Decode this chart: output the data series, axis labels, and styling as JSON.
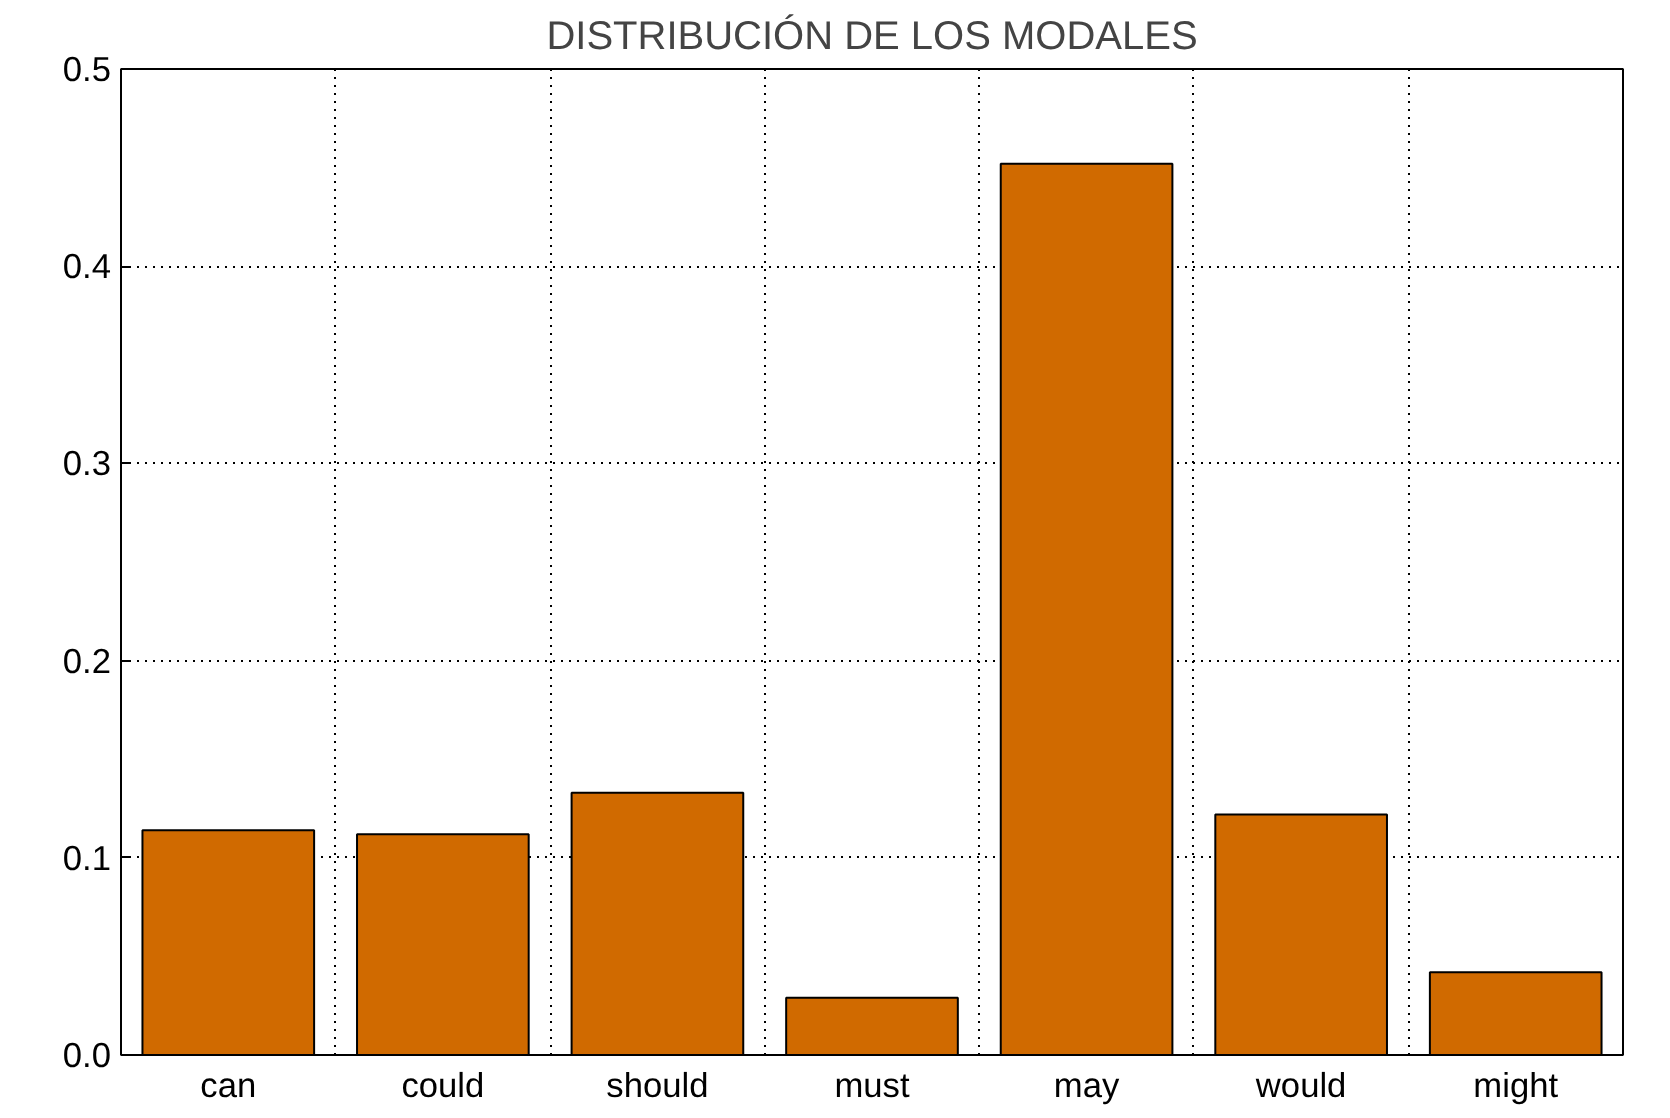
{
  "chart_data": {
    "type": "bar",
    "title": "DISTRIBUCIÓN DE LOS MODALES",
    "categories": [
      "can",
      "could",
      "should",
      "must",
      "may",
      "would",
      "might"
    ],
    "values": [
      0.114,
      0.112,
      0.133,
      0.029,
      0.452,
      0.122,
      0.042
    ],
    "color": "#d06a00",
    "ylim": [
      0,
      0.5
    ],
    "yticks": [
      "0.0",
      0.1,
      0.2,
      0.3,
      0.4,
      0.5
    ],
    "grid": true
  }
}
